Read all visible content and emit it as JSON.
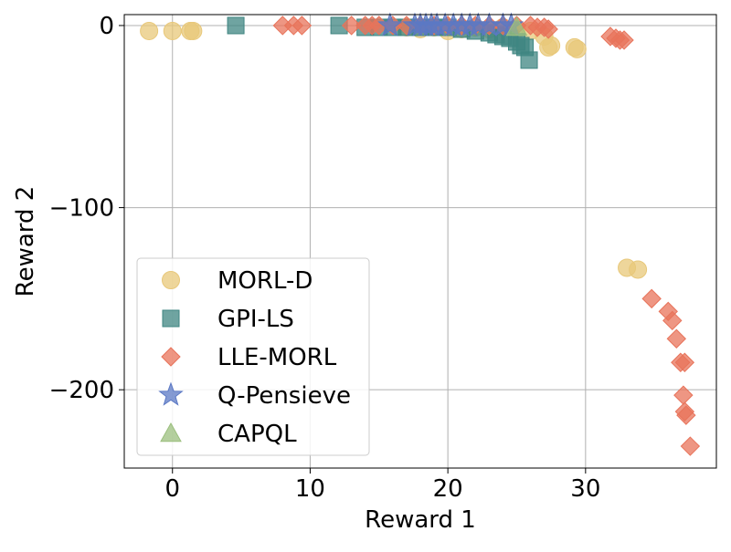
{
  "chart_data": {
    "type": "scatter",
    "title": "",
    "xlabel": "Reward 1",
    "ylabel": "Reward 2",
    "xlim": [
      -3.5,
      39.5
    ],
    "ylim": [
      -243,
      6
    ],
    "xticks": [
      0,
      10,
      20,
      30
    ],
    "xtick_labels": [
      "0",
      "10",
      "20",
      "30"
    ],
    "yticks": [
      0,
      -100,
      -200
    ],
    "ytick_labels": [
      "0",
      "−100",
      "−200"
    ],
    "grid": true,
    "legend_position": "lower-left",
    "series": [
      {
        "name": "MORL-D",
        "marker": "circle",
        "color": "#e8c87a",
        "points": [
          [
            -1.7,
            -3
          ],
          [
            0,
            -3
          ],
          [
            1.3,
            -3
          ],
          [
            1.5,
            -3
          ],
          [
            17,
            -1
          ],
          [
            18,
            -2
          ],
          [
            19,
            -1
          ],
          [
            20,
            -3
          ],
          [
            21,
            -2
          ],
          [
            22,
            -1
          ],
          [
            23,
            -2
          ],
          [
            24,
            -1
          ],
          [
            25,
            -2
          ],
          [
            26,
            -3
          ],
          [
            27,
            -6
          ],
          [
            27.5,
            -11
          ],
          [
            27.3,
            -12
          ],
          [
            29.2,
            -12
          ],
          [
            29.4,
            -13
          ],
          [
            33,
            -133
          ],
          [
            33.8,
            -134
          ]
        ]
      },
      {
        "name": "GPI-LS",
        "marker": "square",
        "color": "#3f8682",
        "points": [
          [
            4.6,
            0
          ],
          [
            12.1,
            0
          ],
          [
            14,
            -1
          ],
          [
            15,
            -1
          ],
          [
            16,
            -1
          ],
          [
            17,
            -1
          ],
          [
            18,
            -1
          ],
          [
            19,
            -1
          ],
          [
            20,
            -1
          ],
          [
            21,
            -2
          ],
          [
            22,
            -3
          ],
          [
            23,
            -4
          ],
          [
            23.5,
            -5
          ],
          [
            24,
            -6
          ],
          [
            24.5,
            -7
          ],
          [
            25,
            -9
          ],
          [
            25.3,
            -11
          ],
          [
            25.6,
            -12
          ],
          [
            25.9,
            -19
          ]
        ]
      },
      {
        "name": "LLE-MORL",
        "marker": "diamond",
        "color": "#e8735a",
        "points": [
          [
            8,
            0
          ],
          [
            8.8,
            0
          ],
          [
            9.4,
            0
          ],
          [
            13,
            0
          ],
          [
            14,
            0
          ],
          [
            14.5,
            0
          ],
          [
            15,
            0
          ],
          [
            16,
            0
          ],
          [
            17,
            0
          ],
          [
            18,
            0
          ],
          [
            19,
            0
          ],
          [
            20,
            0
          ],
          [
            21,
            0
          ],
          [
            22,
            0
          ],
          [
            23,
            0
          ],
          [
            24,
            0
          ],
          [
            25,
            0
          ],
          [
            26,
            0
          ],
          [
            26.5,
            -1
          ],
          [
            27,
            -1
          ],
          [
            27.3,
            -2
          ],
          [
            31.8,
            -6
          ],
          [
            32.2,
            -7
          ],
          [
            32.5,
            -8
          ],
          [
            32.8,
            -8
          ],
          [
            34.8,
            -150
          ],
          [
            36,
            -157
          ],
          [
            36.3,
            -162
          ],
          [
            36.6,
            -172
          ],
          [
            36.9,
            -185
          ],
          [
            37.2,
            -185
          ],
          [
            37.1,
            -203
          ],
          [
            37.2,
            -212
          ],
          [
            37.3,
            -214
          ],
          [
            37.6,
            -231
          ]
        ]
      },
      {
        "name": "Q-Pensieve",
        "marker": "star",
        "color": "#5b78c4",
        "points": [
          [
            15.8,
            0
          ],
          [
            17.6,
            0
          ],
          [
            18,
            0
          ],
          [
            18.4,
            0
          ],
          [
            18.8,
            0
          ],
          [
            19.2,
            0
          ],
          [
            19.8,
            0
          ],
          [
            20.4,
            0
          ],
          [
            21,
            0
          ],
          [
            21.6,
            0
          ],
          [
            22.2,
            0
          ],
          [
            23,
            0
          ],
          [
            24,
            0
          ],
          [
            24.6,
            0
          ]
        ]
      },
      {
        "name": "CAPQL",
        "marker": "triangle",
        "color": "#9bbf7e",
        "points": [
          [
            25,
            -1
          ]
        ]
      }
    ]
  }
}
